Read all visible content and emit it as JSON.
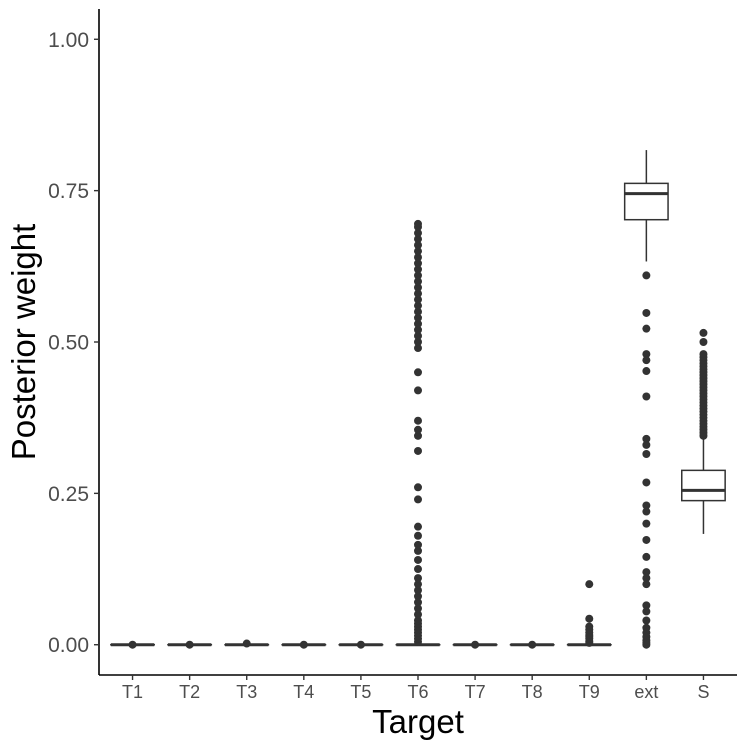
{
  "chart_data": {
    "type": "box",
    "xlabel": "Target",
    "ylabel": "Posterior weight",
    "ylim": [
      -0.05,
      1.05
    ],
    "yticks": [
      0.0,
      0.25,
      0.5,
      0.75,
      1.0
    ],
    "ytick_labels": [
      "0.00",
      "0.25",
      "0.50",
      "0.75",
      "1.00"
    ],
    "grid": false,
    "categories": [
      "T1",
      "T2",
      "T3",
      "T4",
      "T5",
      "T6",
      "T7",
      "T8",
      "T9",
      "ext",
      "S"
    ],
    "boxes": [
      {
        "category": "T1",
        "min": 0.0,
        "q1": 0.0,
        "median": 0.0,
        "q3": 0.0,
        "max": 0.0,
        "outliers": [
          0.0
        ]
      },
      {
        "category": "T2",
        "min": 0.0,
        "q1": 0.0,
        "median": 0.0,
        "q3": 0.0,
        "max": 0.0,
        "outliers": [
          0.0
        ]
      },
      {
        "category": "T3",
        "min": 0.0,
        "q1": 0.0,
        "median": 0.0,
        "q3": 0.0,
        "max": 0.0,
        "outliers": [
          0.002
        ]
      },
      {
        "category": "T4",
        "min": 0.0,
        "q1": 0.0,
        "median": 0.0,
        "q3": 0.0,
        "max": 0.0,
        "outliers": [
          0.0
        ]
      },
      {
        "category": "T5",
        "min": 0.0,
        "q1": 0.0,
        "median": 0.0,
        "q3": 0.0,
        "max": 0.0,
        "outliers": [
          0.0
        ]
      },
      {
        "category": "T6",
        "min": 0.0,
        "q1": 0.0,
        "median": 0.0,
        "q3": 0.0,
        "max": 0.0,
        "outliers": [
          0.005,
          0.01,
          0.015,
          0.02,
          0.025,
          0.03,
          0.035,
          0.04,
          0.05,
          0.06,
          0.07,
          0.08,
          0.09,
          0.1,
          0.11,
          0.125,
          0.14,
          0.155,
          0.165,
          0.18,
          0.195,
          0.24,
          0.26,
          0.32,
          0.345,
          0.355,
          0.37,
          0.42,
          0.45,
          0.49,
          0.5,
          0.51,
          0.52,
          0.53,
          0.54,
          0.55,
          0.56,
          0.57,
          0.58,
          0.59,
          0.6,
          0.61,
          0.62,
          0.63,
          0.64,
          0.65,
          0.66,
          0.67,
          0.68,
          0.69,
          0.695
        ]
      },
      {
        "category": "T7",
        "min": 0.0,
        "q1": 0.0,
        "median": 0.0,
        "q3": 0.0,
        "max": 0.0,
        "outliers": [
          0.0
        ]
      },
      {
        "category": "T8",
        "min": 0.0,
        "q1": 0.0,
        "median": 0.0,
        "q3": 0.0,
        "max": 0.0,
        "outliers": [
          0.0
        ]
      },
      {
        "category": "T9",
        "min": 0.0,
        "q1": 0.0,
        "median": 0.0,
        "q3": 0.0,
        "max": 0.0,
        "outliers": [
          0.003,
          0.006,
          0.01,
          0.013,
          0.016,
          0.02,
          0.025,
          0.03,
          0.043,
          0.1
        ]
      },
      {
        "category": "ext",
        "min": 0.633,
        "q1": 0.702,
        "median": 0.745,
        "q3": 0.762,
        "max": 0.817,
        "outliers": [
          0.61,
          0.548,
          0.522,
          0.48,
          0.47,
          0.452,
          0.41,
          0.34,
          0.33,
          0.315,
          0.268,
          0.23,
          0.22,
          0.2,
          0.173,
          0.145,
          0.12,
          0.11,
          0.1,
          0.065,
          0.055,
          0.04,
          0.028,
          0.02,
          0.013,
          0.007,
          0.003,
          0.0
        ]
      },
      {
        "category": "S",
        "min": 0.183,
        "q1": 0.238,
        "median": 0.255,
        "q3": 0.288,
        "max": 0.339,
        "outliers": [
          0.345,
          0.35,
          0.355,
          0.36,
          0.365,
          0.37,
          0.375,
          0.38,
          0.385,
          0.39,
          0.395,
          0.4,
          0.405,
          0.41,
          0.415,
          0.42,
          0.425,
          0.43,
          0.435,
          0.44,
          0.445,
          0.45,
          0.455,
          0.46,
          0.465,
          0.47,
          0.475,
          0.48,
          0.5,
          0.515
        ]
      }
    ]
  }
}
